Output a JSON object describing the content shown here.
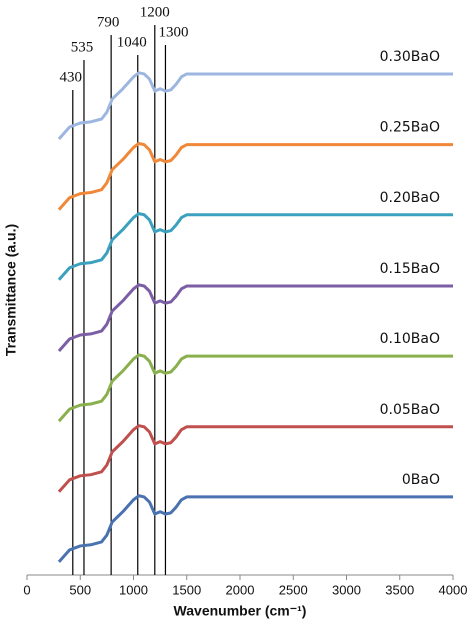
{
  "chart_data": {
    "type": "line",
    "xlabel": "Wavenumber (cm⁻¹)",
    "ylabel": "Transmittance (a.u.)",
    "x": [
      300,
      400,
      500,
      600,
      700,
      750,
      800,
      900,
      1000,
      1050,
      1100,
      1150,
      1200,
      1250,
      1300,
      1350,
      1400,
      1450,
      1500,
      1600,
      4000
    ],
    "xlim": [
      0,
      4000
    ],
    "xticks": [
      0,
      500,
      1000,
      1500,
      2000,
      2500,
      3000,
      3500,
      4000
    ],
    "ylim": [
      0,
      10
    ],
    "reference_lines": [
      430,
      535,
      790,
      1040,
      1200,
      1300
    ],
    "series": [
      {
        "name": "0BaO",
        "color": "#4a72b0",
        "values": [
          0.23,
          0.44,
          0.51,
          0.53,
          0.58,
          0.7,
          0.93,
          1.11,
          1.32,
          1.39,
          1.37,
          1.28,
          1.07,
          1.11,
          1.07,
          1.09,
          1.19,
          1.32,
          1.37,
          1.37,
          1.37
        ]
      },
      {
        "name": "0.05BaO",
        "color": "#c0504d",
        "values": [
          1.46,
          1.67,
          1.74,
          1.76,
          1.81,
          1.93,
          2.16,
          2.34,
          2.55,
          2.62,
          2.6,
          2.51,
          2.3,
          2.34,
          2.3,
          2.32,
          2.42,
          2.55,
          2.6,
          2.6,
          2.6
        ]
      },
      {
        "name": "0.10BaO",
        "color": "#8ab04e",
        "values": [
          2.7,
          2.91,
          2.98,
          3.0,
          3.05,
          3.17,
          3.4,
          3.58,
          3.79,
          3.86,
          3.84,
          3.75,
          3.54,
          3.58,
          3.54,
          3.56,
          3.66,
          3.79,
          3.84,
          3.84,
          3.84
        ]
      },
      {
        "name": "0.15BaO",
        "color": "#7b5ea5",
        "values": [
          3.93,
          4.14,
          4.21,
          4.23,
          4.28,
          4.4,
          4.63,
          4.81,
          5.02,
          5.09,
          5.07,
          4.98,
          4.77,
          4.81,
          4.77,
          4.79,
          4.89,
          5.02,
          5.07,
          5.07,
          5.07
        ]
      },
      {
        "name": "0.20BaO",
        "color": "#3ba1be",
        "values": [
          5.18,
          5.39,
          5.46,
          5.48,
          5.53,
          5.65,
          5.88,
          6.06,
          6.27,
          6.34,
          6.32,
          6.23,
          6.02,
          6.06,
          6.02,
          6.04,
          6.14,
          6.27,
          6.32,
          6.32,
          6.32
        ]
      },
      {
        "name": "0.25BaO",
        "color": "#f0883a",
        "values": [
          6.41,
          6.62,
          6.69,
          6.71,
          6.76,
          6.88,
          7.11,
          7.29,
          7.5,
          7.57,
          7.55,
          7.46,
          7.25,
          7.29,
          7.25,
          7.27,
          7.37,
          7.5,
          7.55,
          7.55,
          7.55
        ]
      },
      {
        "name": "0.30BaO",
        "color": "#9db6e0",
        "values": [
          7.65,
          7.86,
          7.93,
          7.95,
          8.0,
          8.12,
          8.35,
          8.53,
          8.74,
          8.81,
          8.79,
          8.7,
          8.49,
          8.53,
          8.49,
          8.51,
          8.61,
          8.74,
          8.79,
          8.79,
          8.79
        ]
      }
    ]
  }
}
